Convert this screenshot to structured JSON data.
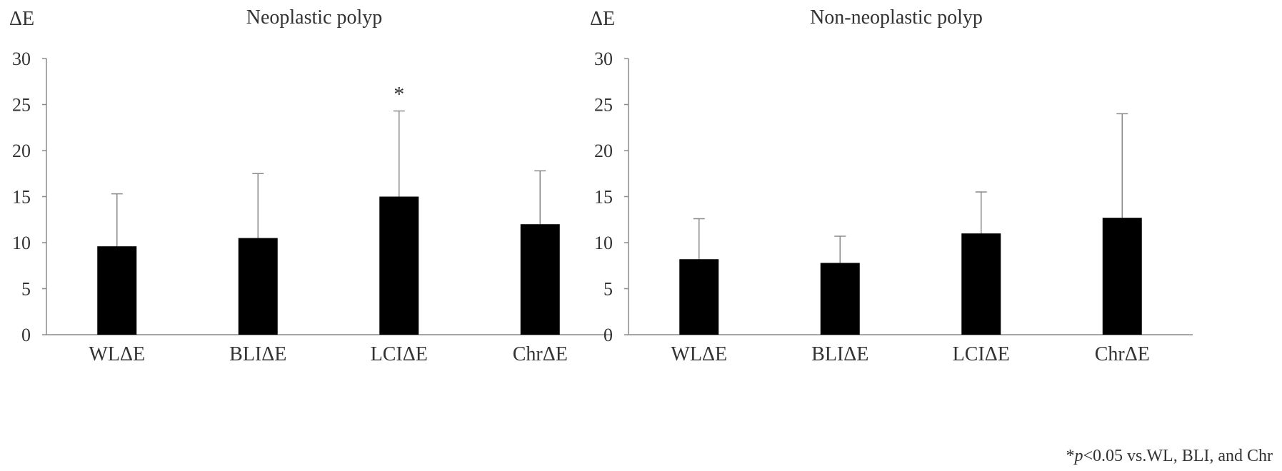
{
  "footnote": {
    "mark": "*",
    "p": "p",
    "rest": "<0.05 vs.WL, BLI, and Chr"
  },
  "chart_data": [
    {
      "type": "bar",
      "title": "Neoplastic polyp",
      "ylabel": "ΔE",
      "ylim": [
        0,
        30
      ],
      "yticks": [
        0,
        5,
        10,
        15,
        20,
        25,
        30
      ],
      "categories": [
        "WLΔE",
        "BLIΔE",
        "LCIΔE",
        "ChrΔE"
      ],
      "values": [
        9.6,
        10.5,
        15.0,
        12.0
      ],
      "error_upper": [
        15.3,
        17.5,
        24.3,
        17.8
      ],
      "annotations": [
        {
          "category": "LCIΔE",
          "text": "*"
        }
      ],
      "bar_color": "#000000",
      "grid": false
    },
    {
      "type": "bar",
      "title": "Non-neoplastic polyp",
      "ylabel": "ΔE",
      "ylim": [
        0,
        30
      ],
      "yticks": [
        0,
        5,
        10,
        15,
        20,
        25,
        30
      ],
      "categories": [
        "WLΔE",
        "BLIΔE",
        "LCIΔE",
        "ChrΔE"
      ],
      "values": [
        8.2,
        7.8,
        11.0,
        12.7
      ],
      "error_upper": [
        12.6,
        10.7,
        15.5,
        24.0
      ],
      "annotations": [],
      "bar_color": "#000000",
      "grid": false
    }
  ]
}
